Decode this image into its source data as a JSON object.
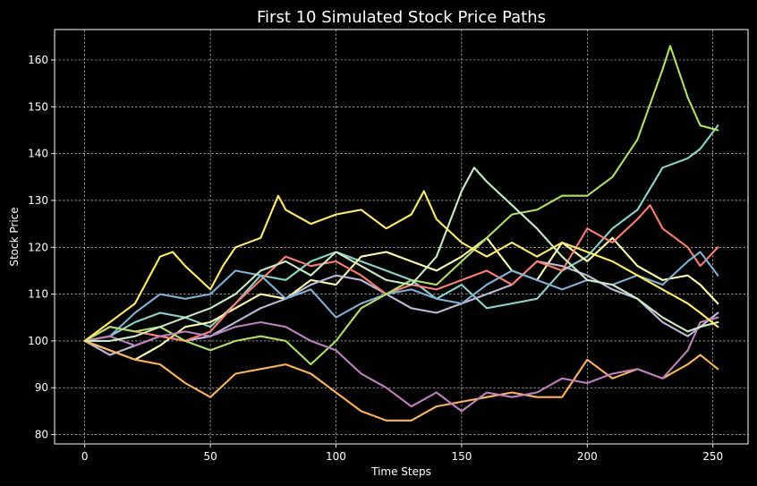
{
  "chart_data": {
    "type": "line",
    "title": "First 10 Simulated Stock Price Paths",
    "xlabel": "Time Steps",
    "ylabel": "Stock Price",
    "xlim": [
      -12,
      264
    ],
    "ylim": [
      78,
      166.5
    ],
    "xticks": [
      0,
      50,
      100,
      150,
      200,
      250
    ],
    "yticks": [
      80,
      90,
      100,
      110,
      120,
      130,
      140,
      150,
      160
    ],
    "grid": true,
    "legend": "none",
    "series": [
      {
        "color": "#8dd3c7",
        "points": [
          [
            0,
            100
          ],
          [
            10,
            101
          ],
          [
            20,
            104
          ],
          [
            30,
            106
          ],
          [
            40,
            105
          ],
          [
            50,
            103
          ],
          [
            60,
            108
          ],
          [
            70,
            114
          ],
          [
            80,
            113
          ],
          [
            90,
            117
          ],
          [
            100,
            119
          ],
          [
            110,
            117
          ],
          [
            120,
            115
          ],
          [
            130,
            113
          ],
          [
            140,
            109
          ],
          [
            150,
            112
          ],
          [
            160,
            107
          ],
          [
            170,
            108
          ],
          [
            180,
            109
          ],
          [
            190,
            115
          ],
          [
            200,
            118
          ],
          [
            210,
            124
          ],
          [
            220,
            128
          ],
          [
            230,
            137
          ],
          [
            240,
            139
          ],
          [
            245,
            141
          ],
          [
            252,
            146
          ]
        ]
      },
      {
        "color": "#feffb3",
        "points": [
          [
            0,
            100
          ],
          [
            10,
            98
          ],
          [
            20,
            96
          ],
          [
            30,
            99
          ],
          [
            40,
            103
          ],
          [
            50,
            104
          ],
          [
            60,
            107
          ],
          [
            70,
            110
          ],
          [
            80,
            109
          ],
          [
            90,
            113
          ],
          [
            100,
            112
          ],
          [
            110,
            118
          ],
          [
            120,
            119
          ],
          [
            130,
            117
          ],
          [
            140,
            115
          ],
          [
            150,
            118
          ],
          [
            160,
            122
          ],
          [
            170,
            115
          ],
          [
            180,
            113
          ],
          [
            190,
            121
          ],
          [
            200,
            117
          ],
          [
            210,
            122
          ],
          [
            220,
            116
          ],
          [
            230,
            113
          ],
          [
            240,
            114
          ],
          [
            245,
            112
          ],
          [
            252,
            108
          ]
        ]
      },
      {
        "color": "#bfbbd9",
        "points": [
          [
            0,
            100
          ],
          [
            10,
            97
          ],
          [
            20,
            99
          ],
          [
            30,
            101
          ],
          [
            40,
            100
          ],
          [
            50,
            101
          ],
          [
            60,
            104
          ],
          [
            70,
            107
          ],
          [
            80,
            109
          ],
          [
            90,
            112
          ],
          [
            100,
            114
          ],
          [
            110,
            113
          ],
          [
            120,
            110
          ],
          [
            130,
            107
          ],
          [
            140,
            106
          ],
          [
            150,
            108
          ],
          [
            160,
            110
          ],
          [
            170,
            112
          ],
          [
            180,
            117
          ],
          [
            190,
            116
          ],
          [
            200,
            114
          ],
          [
            210,
            111
          ],
          [
            220,
            109
          ],
          [
            230,
            104
          ],
          [
            240,
            101
          ],
          [
            245,
            103
          ],
          [
            252,
            106
          ]
        ]
      },
      {
        "color": "#fa8174",
        "points": [
          [
            0,
            100
          ],
          [
            10,
            103
          ],
          [
            20,
            102
          ],
          [
            30,
            101
          ],
          [
            40,
            100
          ],
          [
            50,
            102
          ],
          [
            60,
            108
          ],
          [
            70,
            113
          ],
          [
            80,
            118
          ],
          [
            90,
            116
          ],
          [
            100,
            117
          ],
          [
            110,
            114
          ],
          [
            120,
            110
          ],
          [
            130,
            112
          ],
          [
            140,
            111
          ],
          [
            150,
            113
          ],
          [
            160,
            115
          ],
          [
            170,
            112
          ],
          [
            180,
            117
          ],
          [
            190,
            115
          ],
          [
            200,
            124
          ],
          [
            210,
            121
          ],
          [
            220,
            126
          ],
          [
            225,
            129
          ],
          [
            230,
            124
          ],
          [
            240,
            120
          ],
          [
            245,
            116
          ],
          [
            252,
            120
          ]
        ]
      },
      {
        "color": "#81b1d2",
        "points": [
          [
            0,
            100
          ],
          [
            10,
            101
          ],
          [
            20,
            106
          ],
          [
            30,
            110
          ],
          [
            40,
            109
          ],
          [
            50,
            110
          ],
          [
            60,
            115
          ],
          [
            70,
            114
          ],
          [
            80,
            109
          ],
          [
            90,
            111
          ],
          [
            100,
            105
          ],
          [
            110,
            108
          ],
          [
            120,
            110
          ],
          [
            130,
            111
          ],
          [
            140,
            109
          ],
          [
            150,
            108
          ],
          [
            160,
            112
          ],
          [
            170,
            115
          ],
          [
            180,
            113
          ],
          [
            190,
            111
          ],
          [
            200,
            113
          ],
          [
            210,
            112
          ],
          [
            220,
            114
          ],
          [
            230,
            112
          ],
          [
            240,
            117
          ],
          [
            245,
            119
          ],
          [
            252,
            114
          ]
        ]
      },
      {
        "color": "#fdb462",
        "points": [
          [
            0,
            100
          ],
          [
            10,
            98
          ],
          [
            20,
            96
          ],
          [
            30,
            95
          ],
          [
            40,
            91
          ],
          [
            50,
            88
          ],
          [
            60,
            93
          ],
          [
            70,
            94
          ],
          [
            80,
            95
          ],
          [
            90,
            93
          ],
          [
            100,
            89
          ],
          [
            110,
            85
          ],
          [
            120,
            83
          ],
          [
            130,
            83
          ],
          [
            140,
            86
          ],
          [
            150,
            87
          ],
          [
            160,
            88
          ],
          [
            170,
            89
          ],
          [
            180,
            88
          ],
          [
            190,
            88
          ],
          [
            200,
            96
          ],
          [
            210,
            92
          ],
          [
            220,
            94
          ],
          [
            230,
            92
          ],
          [
            240,
            95
          ],
          [
            245,
            97
          ],
          [
            252,
            94
          ]
        ]
      },
      {
        "color": "#b3de69",
        "points": [
          [
            0,
            100
          ],
          [
            10,
            103
          ],
          [
            20,
            102
          ],
          [
            30,
            103
          ],
          [
            40,
            100
          ],
          [
            50,
            98
          ],
          [
            60,
            100
          ],
          [
            70,
            101
          ],
          [
            80,
            100
          ],
          [
            90,
            95
          ],
          [
            100,
            100
          ],
          [
            110,
            107
          ],
          [
            120,
            110
          ],
          [
            130,
            113
          ],
          [
            140,
            112
          ],
          [
            150,
            117
          ],
          [
            160,
            122
          ],
          [
            170,
            127
          ],
          [
            180,
            128
          ],
          [
            190,
            131
          ],
          [
            200,
            131
          ],
          [
            210,
            135
          ],
          [
            220,
            143
          ],
          [
            230,
            158
          ],
          [
            233,
            163
          ],
          [
            240,
            152
          ],
          [
            245,
            146
          ],
          [
            252,
            145
          ]
        ]
      },
      {
        "color": "#bc82bd",
        "points": [
          [
            0,
            100
          ],
          [
            10,
            101
          ],
          [
            20,
            99
          ],
          [
            30,
            101
          ],
          [
            40,
            102
          ],
          [
            50,
            101
          ],
          [
            60,
            103
          ],
          [
            70,
            104
          ],
          [
            80,
            103
          ],
          [
            90,
            100
          ],
          [
            100,
            98
          ],
          [
            110,
            93
          ],
          [
            120,
            90
          ],
          [
            130,
            86
          ],
          [
            140,
            89
          ],
          [
            150,
            85
          ],
          [
            160,
            89
          ],
          [
            170,
            88
          ],
          [
            180,
            89
          ],
          [
            190,
            92
          ],
          [
            200,
            91
          ],
          [
            210,
            93
          ],
          [
            220,
            94
          ],
          [
            230,
            92
          ],
          [
            240,
            98
          ],
          [
            245,
            104
          ],
          [
            252,
            105
          ]
        ]
      },
      {
        "color": "#ccebc4",
        "points": [
          [
            0,
            100
          ],
          [
            10,
            100
          ],
          [
            20,
            101
          ],
          [
            30,
            103
          ],
          [
            40,
            105
          ],
          [
            50,
            107
          ],
          [
            60,
            110
          ],
          [
            70,
            115
          ],
          [
            80,
            117
          ],
          [
            90,
            114
          ],
          [
            100,
            119
          ],
          [
            110,
            116
          ],
          [
            120,
            113
          ],
          [
            130,
            112
          ],
          [
            140,
            118
          ],
          [
            150,
            132
          ],
          [
            155,
            137
          ],
          [
            160,
            134
          ],
          [
            170,
            129
          ],
          [
            180,
            124
          ],
          [
            190,
            118
          ],
          [
            200,
            113
          ],
          [
            210,
            112
          ],
          [
            220,
            109
          ],
          [
            230,
            105
          ],
          [
            240,
            102
          ],
          [
            245,
            103
          ],
          [
            252,
            104
          ]
        ]
      },
      {
        "color": "#ffed6f",
        "points": [
          [
            0,
            100
          ],
          [
            10,
            104
          ],
          [
            20,
            108
          ],
          [
            25,
            113
          ],
          [
            30,
            118
          ],
          [
            35,
            119
          ],
          [
            40,
            116
          ],
          [
            50,
            111
          ],
          [
            55,
            116
          ],
          [
            60,
            120
          ],
          [
            70,
            122
          ],
          [
            77,
            131
          ],
          [
            80,
            128
          ],
          [
            90,
            125
          ],
          [
            100,
            127
          ],
          [
            110,
            128
          ],
          [
            120,
            124
          ],
          [
            130,
            127
          ],
          [
            135,
            132
          ],
          [
            140,
            126
          ],
          [
            150,
            121
          ],
          [
            160,
            118
          ],
          [
            170,
            121
          ],
          [
            180,
            118
          ],
          [
            190,
            121
          ],
          [
            200,
            119
          ],
          [
            210,
            117
          ],
          [
            220,
            114
          ],
          [
            230,
            111
          ],
          [
            240,
            108
          ],
          [
            245,
            106
          ],
          [
            252,
            103
          ]
        ]
      }
    ]
  }
}
